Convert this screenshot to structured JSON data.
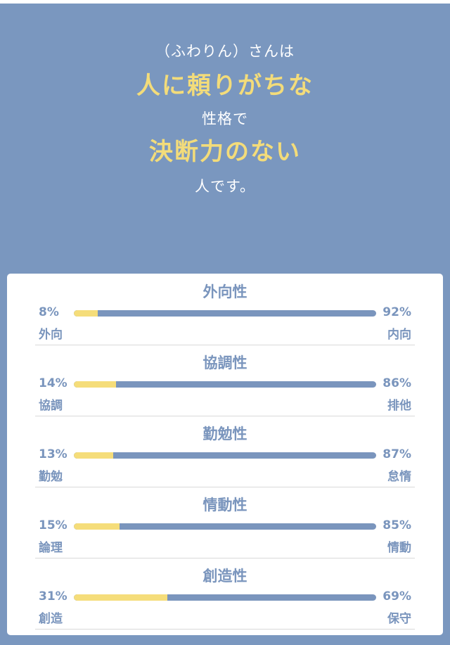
{
  "hero": {
    "line1": "（ふわりん）さんは",
    "line2": "人に頼りがちな",
    "line3": "性格で",
    "line4": "決断力のない",
    "line5": "人です。"
  },
  "colors": {
    "background": "#7a97bf",
    "accent_yellow": "#f3dc7a",
    "bar_blue": "#7a95bd"
  },
  "traits": [
    {
      "title": "外向性",
      "left_pct": "8%",
      "left_label": "外向",
      "right_pct": "92%",
      "right_label": "内向",
      "fill": 8
    },
    {
      "title": "協調性",
      "left_pct": "14%",
      "left_label": "協調",
      "right_pct": "86%",
      "right_label": "排他",
      "fill": 14
    },
    {
      "title": "勤勉性",
      "left_pct": "13%",
      "left_label": "勤勉",
      "right_pct": "87%",
      "right_label": "怠惰",
      "fill": 13
    },
    {
      "title": "情動性",
      "left_pct": "15%",
      "left_label": "論理",
      "right_pct": "85%",
      "right_label": "情動",
      "fill": 15
    },
    {
      "title": "創造性",
      "left_pct": "31%",
      "left_label": "創造",
      "right_pct": "69%",
      "right_label": "保守",
      "fill": 31
    }
  ]
}
